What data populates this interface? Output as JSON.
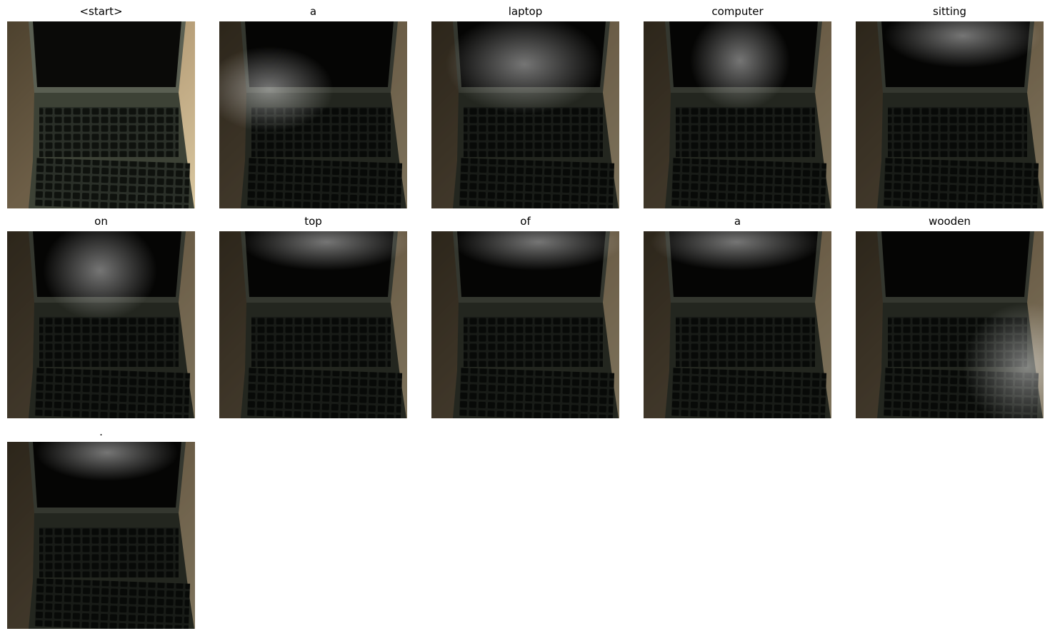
{
  "panels": [
    {
      "title": "<start>"
    },
    {
      "title": "a"
    },
    {
      "title": "laptop"
    },
    {
      "title": "computer"
    },
    {
      "title": "sitting"
    },
    {
      "title": "on"
    },
    {
      "title": "top"
    },
    {
      "title": "of"
    },
    {
      "title": "a"
    },
    {
      "title": "wooden"
    },
    {
      "title": "."
    }
  ]
}
